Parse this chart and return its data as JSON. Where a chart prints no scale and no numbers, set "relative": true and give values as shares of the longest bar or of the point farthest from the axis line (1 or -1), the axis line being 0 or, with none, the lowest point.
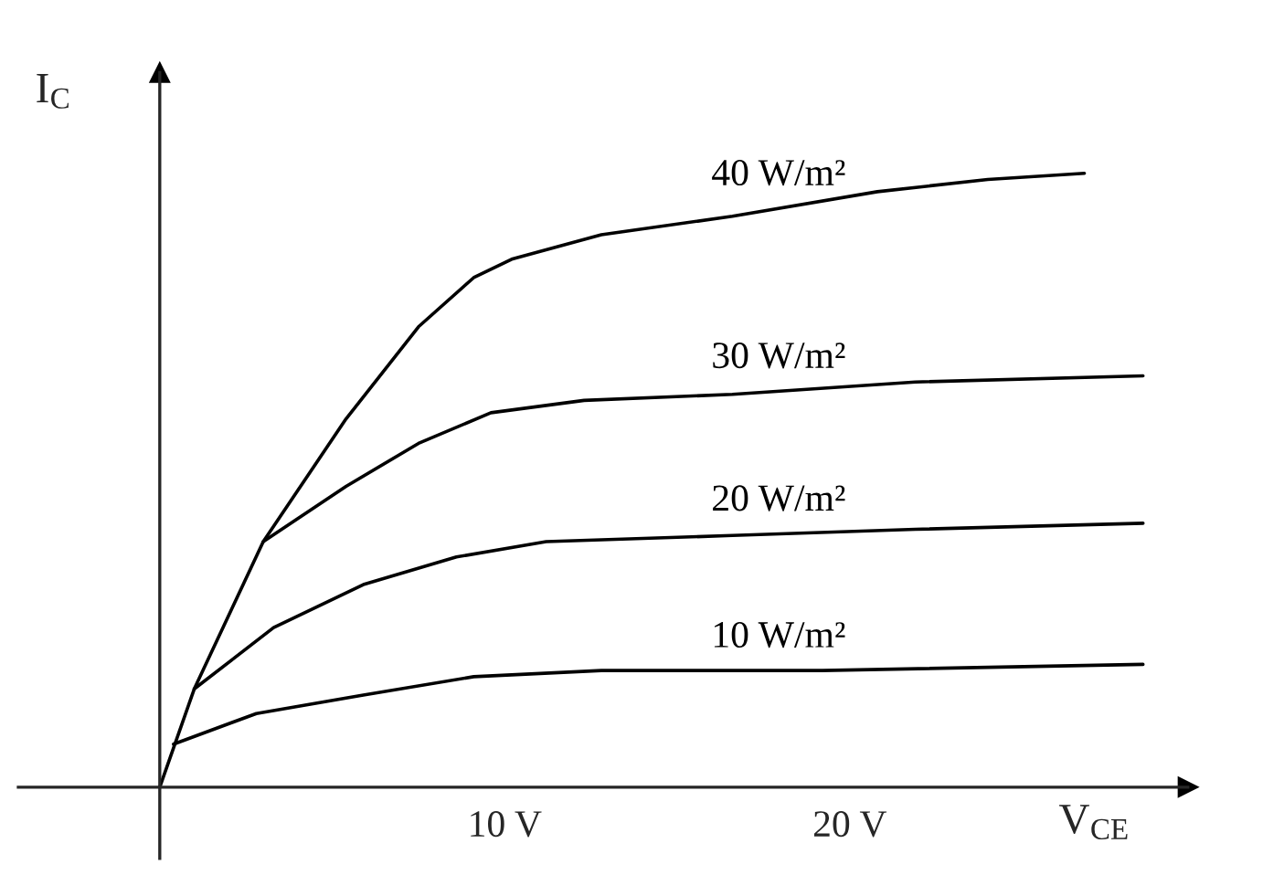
{
  "chart_data": {
    "type": "line",
    "relative": true,
    "xlabel": "V$_{CE}$",
    "ylabel": "I$_{C}$",
    "xlim": [
      -4.1,
      29.8
    ],
    "xticks": [
      {
        "value": 10,
        "label": "10 V"
      },
      {
        "value": 20,
        "label": "20 V"
      }
    ],
    "tick_labels": "x",
    "marker": "none",
    "line_style": "solid",
    "series": [
      {
        "name": "40 W/m²",
        "color": "#000000",
        "x": [
          0,
          1.0,
          3.0,
          5.4,
          7.5,
          9.1,
          10.2,
          12.8,
          16.6,
          20.8,
          24.0,
          26.8
        ],
        "values": [
          0,
          0.16,
          0.4,
          0.6,
          0.75,
          0.83,
          0.86,
          0.9,
          0.93,
          0.97,
          0.99,
          1.0
        ]
      },
      {
        "name": "30 W/m²",
        "color": "#000000",
        "x": [
          3.0,
          5.4,
          7.5,
          9.6,
          12.3,
          16.6,
          21.9,
          28.5
        ],
        "values": [
          0.4,
          0.49,
          0.56,
          0.61,
          0.63,
          0.64,
          0.66,
          0.67
        ]
      },
      {
        "name": "20 W/m²",
        "color": "#000000",
        "x": [
          1.0,
          3.3,
          5.9,
          8.6,
          11.2,
          16.6,
          21.9,
          28.5
        ],
        "values": [
          0.16,
          0.26,
          0.33,
          0.375,
          0.4,
          0.41,
          0.42,
          0.43
        ]
      },
      {
        "name": "10 W/m²",
        "color": "#000000",
        "x": [
          0.4,
          2.8,
          5.9,
          9.1,
          12.8,
          19.2,
          28.5
        ],
        "values": [
          0.07,
          0.12,
          0.15,
          0.18,
          0.19,
          0.19,
          0.2
        ]
      }
    ]
  }
}
